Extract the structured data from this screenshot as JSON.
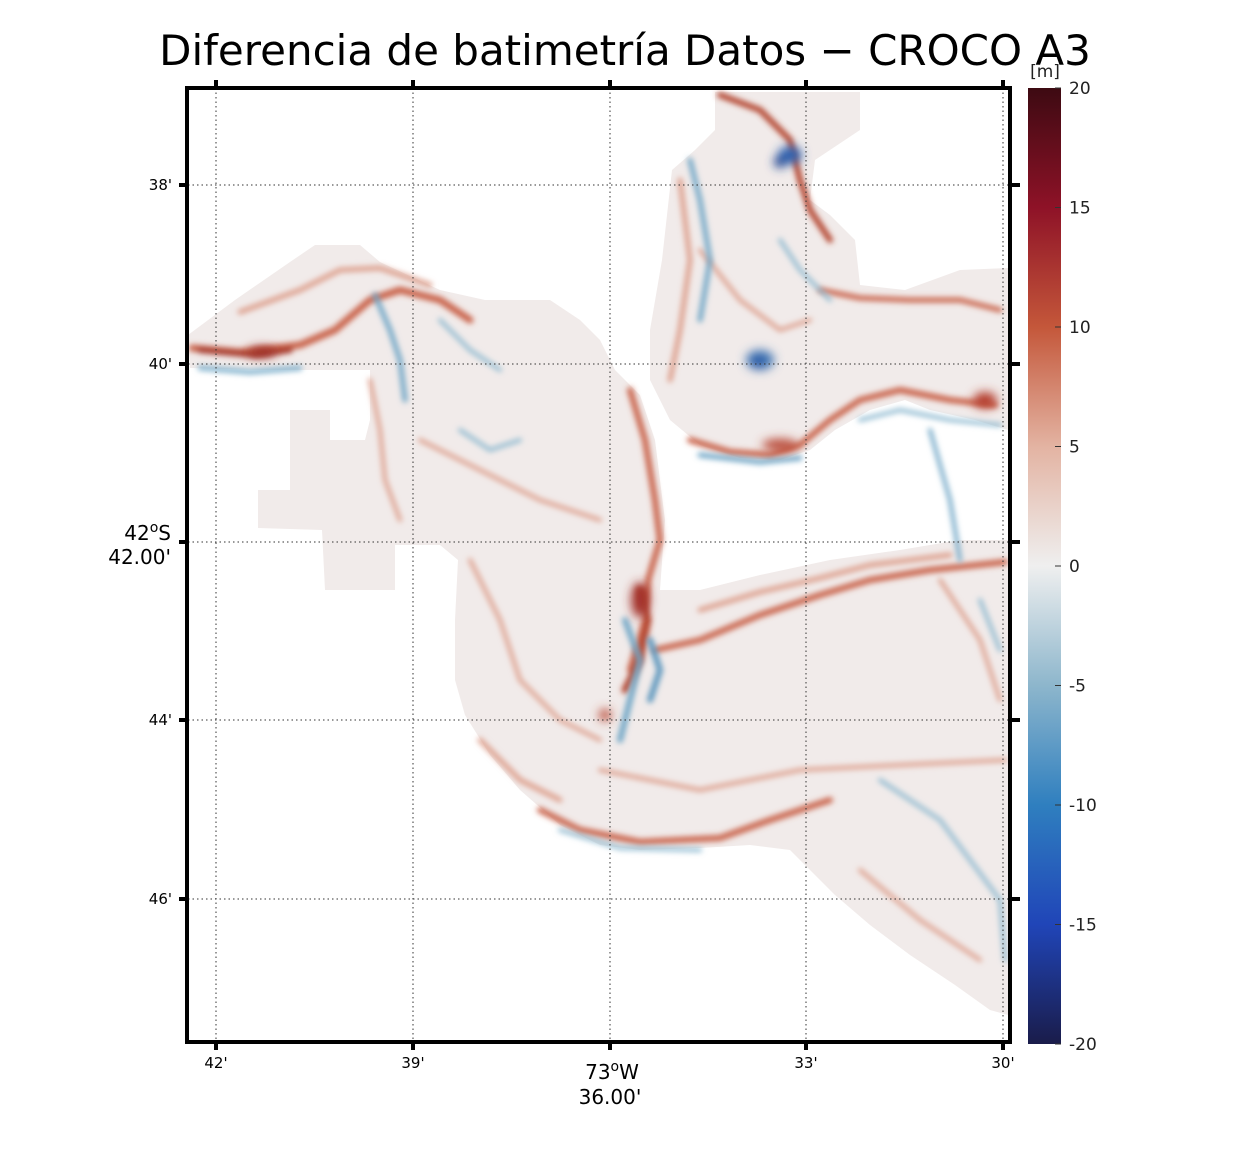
{
  "title": "Diferencia de batimetría Datos − CROCO A3",
  "map": {
    "x_ticks": [
      "42'",
      "39'",
      "33'",
      "30'"
    ],
    "x_center": {
      "deg": "73",
      "sup": "o",
      "hem": "W",
      "min": "36.00'"
    },
    "y_ticks": [
      "38'",
      "40'",
      "44'",
      "46'"
    ],
    "y_center": {
      "deg": "42",
      "sup": "o",
      "hem": "S",
      "min": "42.00'"
    },
    "grid": "dotted"
  },
  "colorbar": {
    "unit": "[m]",
    "ticks": [
      "20",
      "15",
      "10",
      "5",
      "0",
      "-5",
      "-10",
      "-15",
      "-20"
    ],
    "range": [
      -20,
      20
    ],
    "colors": [
      "#1a1c4a",
      "#2045b8",
      "#2f7fbf",
      "#8db6cc",
      "#efefef",
      "#e3b3a2",
      "#c4573a",
      "#8e1227",
      "#3d0a12"
    ]
  },
  "chart_data": {
    "type": "heatmap",
    "title": "Diferencia de batimetría Datos − CROCO A3",
    "colorbar_label": "[m]",
    "value_range": [
      -20,
      20
    ],
    "x_tick_labels": [
      "42'",
      "39'",
      "73°W 36.00'",
      "33'",
      "30'"
    ],
    "y_tick_labels": [
      "38'",
      "40'",
      "42°S 42.00'",
      "44'",
      "46'"
    ],
    "grid": true
  }
}
